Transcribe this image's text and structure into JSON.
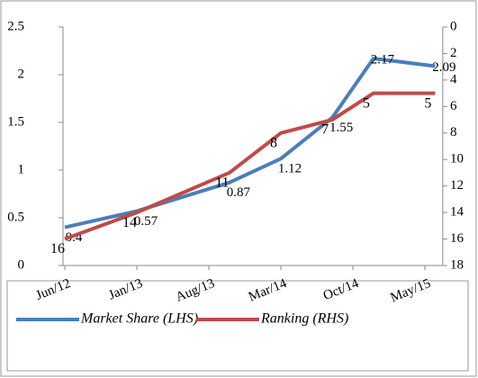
{
  "chart_data": {
    "type": "line",
    "x": [
      "Jun/12",
      "Jan/13",
      "Oct/13",
      "Mar/14",
      "Aug/14",
      "Dec/14",
      "Jun/15"
    ],
    "xlim": [
      "Jun/12",
      "Jul/15"
    ],
    "xticks": [
      "Jun/12",
      "Jan/13",
      "Aug/13",
      "Mar/14",
      "Oct/14",
      "May/15"
    ],
    "ylim": [
      0,
      2.5
    ],
    "yticks": [
      0,
      0.5,
      1,
      1.5,
      2,
      2.5
    ],
    "y2lim": [
      0,
      18
    ],
    "y2ticks": [
      0,
      2,
      4,
      6,
      8,
      10,
      12,
      14,
      16,
      18
    ],
    "y2_inverted": true,
    "legend": "bottom",
    "series": [
      {
        "name": "Market Share (LHS)",
        "color": "#4a7ebb",
        "values": [
          0.4,
          0.57,
          0.87,
          1.12,
          1.55,
          2.17,
          2.09
        ]
      },
      {
        "name": "Ranking (RHS)",
        "color": "#be4b48",
        "axis": "y2",
        "values": [
          16,
          14,
          11,
          8,
          7,
          5,
          5
        ]
      }
    ]
  }
}
